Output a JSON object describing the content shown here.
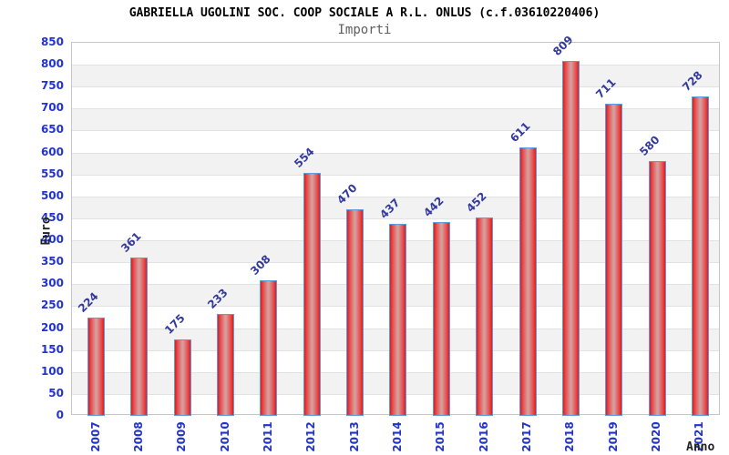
{
  "header": {
    "title": "GABRIELLA UGOLINI SOC. COOP SOCIALE A R.L. ONLUS (c.f.03610220406)",
    "subtitle": "Importi"
  },
  "chart_data": {
    "type": "bar",
    "title": "GABRIELLA UGOLINI SOC. COOP SOCIALE A R.L. ONLUS (c.f.03610220406)",
    "subtitle": "Importi",
    "xlabel": "Anno",
    "ylabel": "Euro",
    "categories": [
      "2007",
      "2008",
      "2009",
      "2010",
      "2011",
      "2012",
      "2013",
      "2014",
      "2015",
      "2016",
      "2017",
      "2018",
      "2019",
      "2020",
      "2021"
    ],
    "values": [
      224,
      361,
      175,
      233,
      308,
      554,
      470,
      437,
      442,
      452,
      611,
      809,
      711,
      580,
      728
    ],
    "ylim": [
      0,
      850
    ],
    "ytick_step": 50,
    "grid": "horizontal-gridlines-with-alternating-bands",
    "legend": "none",
    "colors": {
      "bar_edge": "#5b9ce0",
      "bar_fill_edge": "#dd1b1b",
      "bar_fill_center": "#d79c9c",
      "tick_label": "#2233cc",
      "value_label": "#333a9b",
      "band_gray": "#f2f2f2",
      "gridline": "#e2e2e2",
      "subtitle_gray": "#5f5f5f"
    }
  }
}
